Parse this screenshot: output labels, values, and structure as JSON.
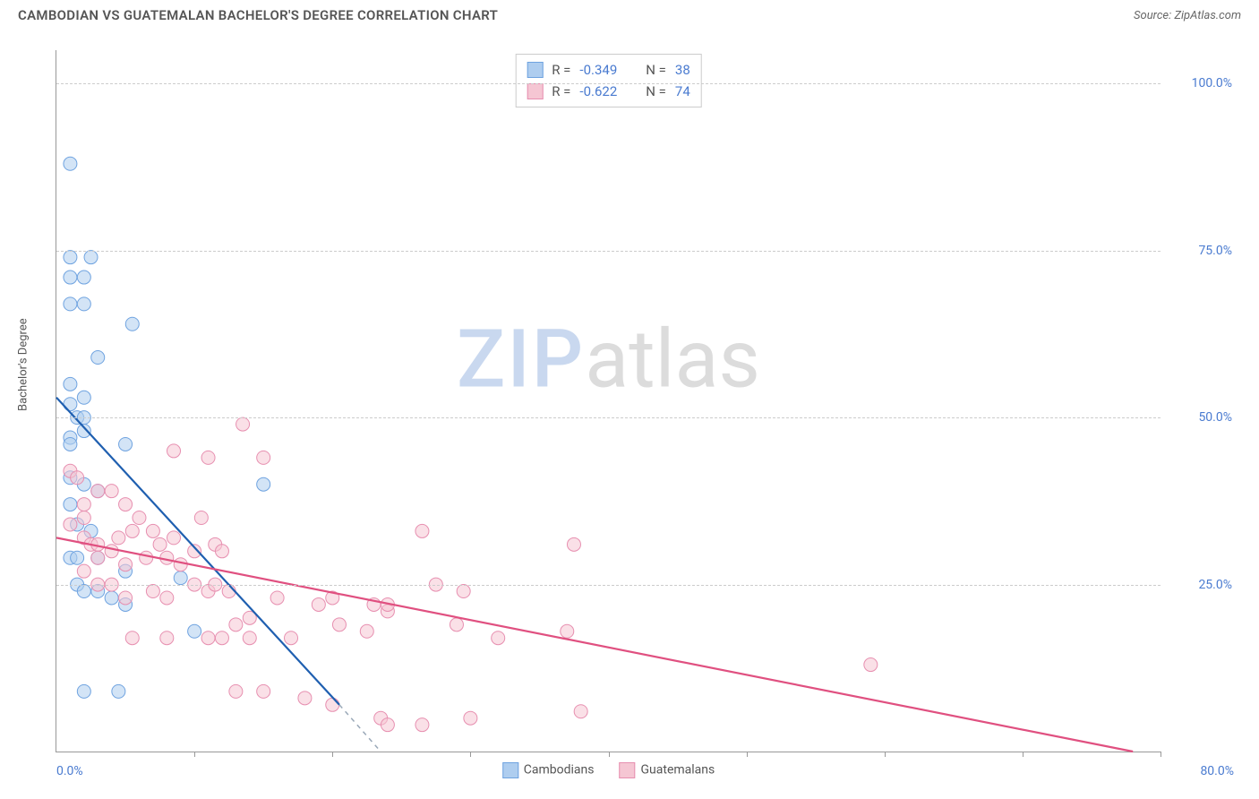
{
  "title": "CAMBODIAN VS GUATEMALAN BACHELOR'S DEGREE CORRELATION CHART",
  "source_label": "Source: ",
  "source_name": "ZipAtlas.com",
  "ylabel": "Bachelor's Degree",
  "watermark_a": "ZIP",
  "watermark_b": "atlas",
  "chart": {
    "type": "scatter",
    "xlim": [
      0,
      80
    ],
    "ylim": [
      0,
      105
    ],
    "background_color": "#ffffff",
    "grid_color": "#cccccc",
    "axis_color": "#999999",
    "tick_color": "#4a7bd0",
    "y_ticks": [
      {
        "v": 25,
        "label": "25.0%"
      },
      {
        "v": 50,
        "label": "50.0%"
      },
      {
        "v": 75,
        "label": "75.0%"
      },
      {
        "v": 100,
        "label": "100.0%"
      }
    ],
    "x_tick_positions": [
      10,
      20,
      30,
      40,
      50,
      60,
      70,
      80
    ],
    "x_left_label": "0.0%",
    "x_right_label": "80.0%",
    "marker_radius": 7.5,
    "marker_opacity": 0.55,
    "line_width": 2.2,
    "series": [
      {
        "name": "Cambodians",
        "color_fill": "#aecdef",
        "color_stroke": "#6fa3e0",
        "line_color": "#1f5fb0",
        "dash_color": "#9aa8b8",
        "R_label": "R = ",
        "R": "-0.349",
        "N_label": "N = ",
        "N": "38",
        "points": [
          [
            1.0,
            88
          ],
          [
            1.0,
            74
          ],
          [
            2.5,
            74
          ],
          [
            1.0,
            71
          ],
          [
            2.0,
            71
          ],
          [
            1.0,
            67
          ],
          [
            2.0,
            67
          ],
          [
            5.5,
            64
          ],
          [
            3.0,
            59
          ],
          [
            1.0,
            55
          ],
          [
            2.0,
            53
          ],
          [
            1.0,
            52
          ],
          [
            1.5,
            50
          ],
          [
            2.0,
            50
          ],
          [
            2.0,
            48
          ],
          [
            1.0,
            47
          ],
          [
            1.0,
            46
          ],
          [
            5.0,
            46
          ],
          [
            1.0,
            41
          ],
          [
            2.0,
            40
          ],
          [
            3.0,
            39
          ],
          [
            1.0,
            37
          ],
          [
            15.0,
            40
          ],
          [
            1.5,
            34
          ],
          [
            2.5,
            33
          ],
          [
            1.0,
            29
          ],
          [
            1.5,
            29
          ],
          [
            3.0,
            29
          ],
          [
            5.0,
            27
          ],
          [
            1.5,
            25
          ],
          [
            2.0,
            24
          ],
          [
            3.0,
            24
          ],
          [
            4.0,
            23
          ],
          [
            5.0,
            22
          ],
          [
            9.0,
            26
          ],
          [
            10.0,
            18
          ],
          [
            2.0,
            9
          ],
          [
            4.5,
            9
          ]
        ],
        "trend": {
          "x1": 0,
          "y1": 53,
          "x2": 20.5,
          "y2": 7
        },
        "trend_dash": {
          "x1": 20.5,
          "y1": 7,
          "x2": 23.5,
          "y2": 0
        }
      },
      {
        "name": "Guatemalans",
        "color_fill": "#f5c6d3",
        "color_stroke": "#e78fb0",
        "line_color": "#e05080",
        "R_label": "R = ",
        "R": "-0.622",
        "N_label": "N = ",
        "N": "74",
        "points": [
          [
            1.0,
            42
          ],
          [
            1.5,
            41
          ],
          [
            2.0,
            37
          ],
          [
            2.0,
            35
          ],
          [
            3.0,
            39
          ],
          [
            4.0,
            39
          ],
          [
            5.0,
            37
          ],
          [
            6.0,
            35
          ],
          [
            8.5,
            45
          ],
          [
            11.0,
            44
          ],
          [
            13.5,
            49
          ],
          [
            15.0,
            44
          ],
          [
            1.0,
            34
          ],
          [
            2.0,
            32
          ],
          [
            2.5,
            31
          ],
          [
            3.0,
            31
          ],
          [
            3.0,
            29
          ],
          [
            4.0,
            30
          ],
          [
            4.5,
            32
          ],
          [
            5.0,
            28
          ],
          [
            5.5,
            33
          ],
          [
            6.5,
            29
          ],
          [
            7.0,
            33
          ],
          [
            7.5,
            31
          ],
          [
            8.0,
            29
          ],
          [
            8.5,
            32
          ],
          [
            9.0,
            28
          ],
          [
            10.0,
            30
          ],
          [
            10.5,
            35
          ],
          [
            11.5,
            31
          ],
          [
            12.0,
            30
          ],
          [
            26.5,
            33
          ],
          [
            37.5,
            31
          ],
          [
            2.0,
            27
          ],
          [
            3.0,
            25
          ],
          [
            4.0,
            25
          ],
          [
            5.0,
            23
          ],
          [
            7.0,
            24
          ],
          [
            8.0,
            23
          ],
          [
            10.0,
            25
          ],
          [
            11.0,
            24
          ],
          [
            11.5,
            25
          ],
          [
            12.5,
            24
          ],
          [
            13.0,
            19
          ],
          [
            14.0,
            20
          ],
          [
            16.0,
            23
          ],
          [
            19.0,
            22
          ],
          [
            20.0,
            23
          ],
          [
            20.5,
            19
          ],
          [
            23.0,
            22
          ],
          [
            24.0,
            21
          ],
          [
            27.5,
            25
          ],
          [
            29.5,
            24
          ],
          [
            5.5,
            17
          ],
          [
            8.0,
            17
          ],
          [
            11.0,
            17
          ],
          [
            12.0,
            17
          ],
          [
            14.0,
            17
          ],
          [
            17.0,
            17
          ],
          [
            22.5,
            18
          ],
          [
            24.0,
            22
          ],
          [
            29.0,
            19
          ],
          [
            32.0,
            17
          ],
          [
            37.0,
            18
          ],
          [
            13.0,
            9
          ],
          [
            15.0,
            9
          ],
          [
            18.0,
            8
          ],
          [
            20.0,
            7
          ],
          [
            23.5,
            5
          ],
          [
            24.0,
            4
          ],
          [
            26.5,
            4
          ],
          [
            30.0,
            5
          ],
          [
            38.0,
            6
          ],
          [
            59.0,
            13
          ]
        ],
        "trend": {
          "x1": 0,
          "y1": 32,
          "x2": 78,
          "y2": 0
        }
      }
    ],
    "legend_bottom": [
      {
        "label": "Cambodians",
        "fill": "#aecdef",
        "stroke": "#6fa3e0"
      },
      {
        "label": "Guatemalans",
        "fill": "#f5c6d3",
        "stroke": "#e78fb0"
      }
    ]
  }
}
